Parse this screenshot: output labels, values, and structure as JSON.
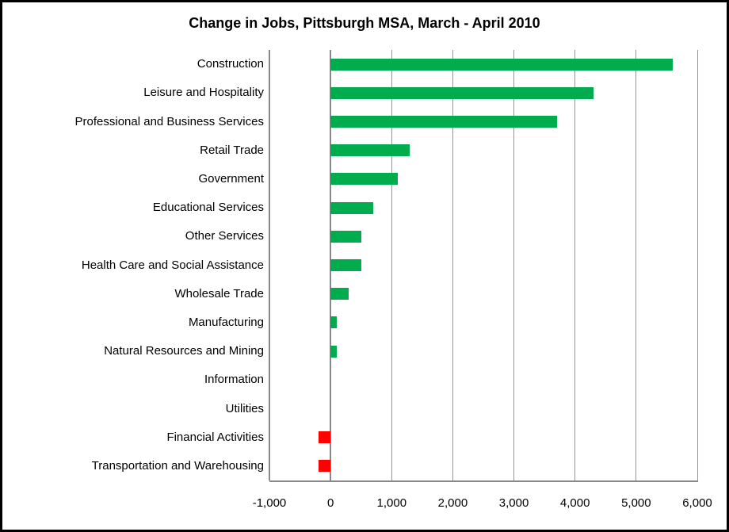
{
  "chart_data": {
    "type": "bar",
    "orientation": "horizontal",
    "title": "Change in Jobs, Pittsburgh MSA, March - April 2010",
    "categories": [
      "Construction",
      "Leisure and Hospitality",
      "Professional and Business Services",
      "Retail Trade",
      "Government",
      "Educational Services",
      "Other Services",
      "Health Care and Social Assistance",
      "Wholesale Trade",
      "Manufacturing",
      "Natural Resources and Mining",
      "Information",
      "Utilities",
      "Financial Activities",
      "Transportation and Warehousing"
    ],
    "values": [
      5600,
      4300,
      3700,
      1300,
      1100,
      700,
      500,
      500,
      300,
      100,
      100,
      0,
      0,
      -200,
      -200
    ],
    "xlim": [
      -1000,
      6000
    ],
    "x_ticks": [
      -1000,
      0,
      1000,
      2000,
      3000,
      4000,
      5000,
      6000
    ],
    "x_tick_labels": [
      "-1,000",
      "0",
      "1,000",
      "2,000",
      "3,000",
      "4,000",
      "5,000",
      "6,000"
    ],
    "grid": true,
    "legend": "none",
    "colors": {
      "positive_bar": "#00AC4E",
      "negative_bar": "#FF0000",
      "gridline": "#969696",
      "axis_line": "#898989",
      "frame_border": "#000000",
      "text": "#000000"
    }
  }
}
